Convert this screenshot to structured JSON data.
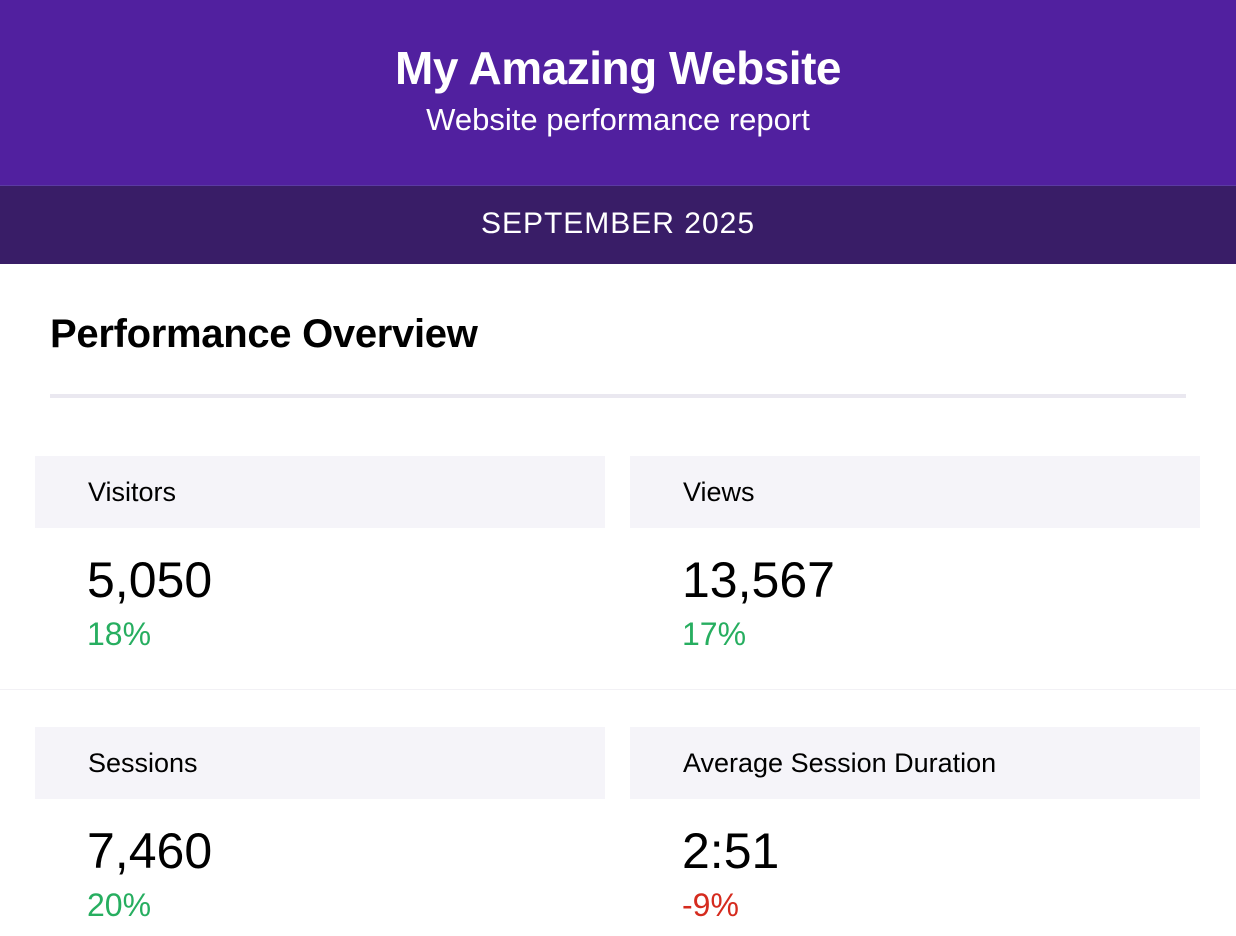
{
  "header": {
    "title": "My Amazing Website",
    "subtitle": "Website performance report",
    "background_color": "#51209f"
  },
  "period": {
    "label": "SEPTEMBER 2025",
    "background_color": "#391d67"
  },
  "section": {
    "title": "Performance Overview"
  },
  "metrics": [
    {
      "label": "Visitors",
      "value": "5,050",
      "change": "18%",
      "trend": "positive"
    },
    {
      "label": "Views",
      "value": "13,567",
      "change": "17%",
      "trend": "positive"
    },
    {
      "label": "Sessions",
      "value": "7,460",
      "change": "20%",
      "trend": "positive"
    },
    {
      "label": "Average Session Duration",
      "value": "2:51",
      "change": "-9%",
      "trend": "negative"
    }
  ],
  "colors": {
    "positive": "#27ae60",
    "negative": "#d52b1e"
  }
}
